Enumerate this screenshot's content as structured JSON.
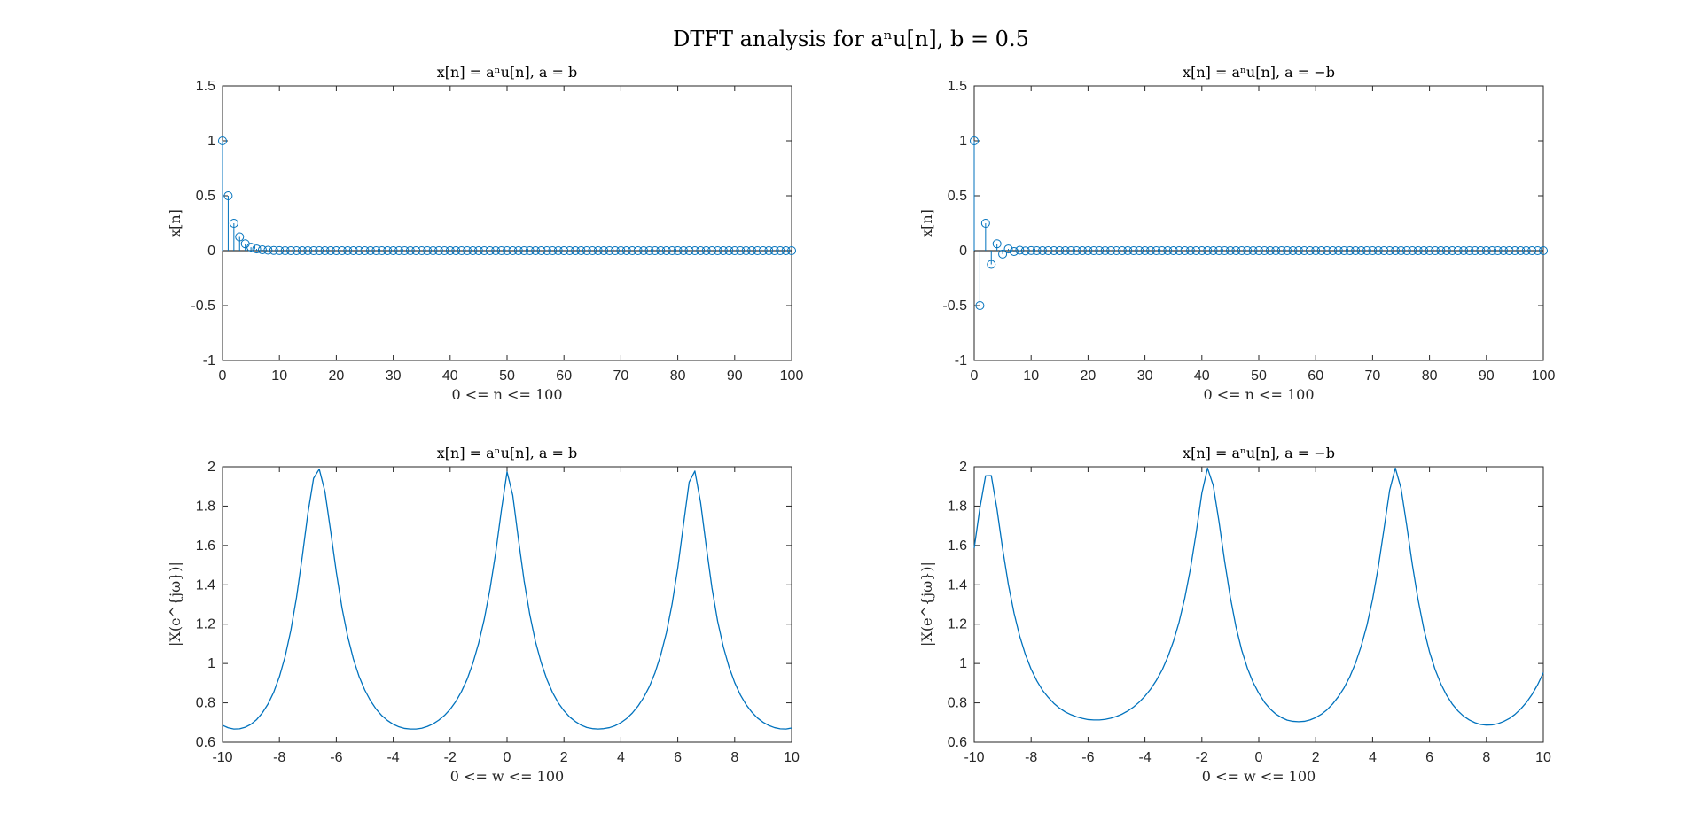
{
  "figure": {
    "suptitle": "DTFT analysis for aⁿu[n], b = 0.5"
  },
  "colors": {
    "series": "#0072BD",
    "axis": "#262626"
  },
  "chart_data": [
    {
      "id": "p1",
      "type": "stem",
      "title": "x[n] = aⁿu[n], a = b",
      "xlabel": "0 <= n <= 100",
      "ylabel": "x[n]",
      "xlim": [
        0,
        100
      ],
      "ylim": [
        -1,
        1.5
      ],
      "xticks": [
        "0",
        "10",
        "20",
        "30",
        "40",
        "50",
        "60",
        "70",
        "80",
        "90",
        "100"
      ],
      "yticks": [
        "-1",
        "-0.5",
        "0",
        "0.5",
        "1",
        "1.5"
      ],
      "x": [
        0,
        1,
        2,
        3,
        4,
        5,
        6,
        7,
        8,
        9,
        10,
        11,
        12,
        13,
        14,
        15,
        16,
        17,
        18,
        19,
        20,
        21,
        22,
        23,
        24,
        25,
        26,
        27,
        28,
        29,
        30,
        31,
        32,
        33,
        34,
        35,
        36,
        37,
        38,
        39,
        40,
        41,
        42,
        43,
        44,
        45,
        46,
        47,
        48,
        49,
        50,
        51,
        52,
        53,
        54,
        55,
        56,
        57,
        58,
        59,
        60,
        61,
        62,
        63,
        64,
        65,
        66,
        67,
        68,
        69,
        70,
        71,
        72,
        73,
        74,
        75,
        76,
        77,
        78,
        79,
        80,
        81,
        82,
        83,
        84,
        85,
        86,
        87,
        88,
        89,
        90,
        91,
        92,
        93,
        94,
        95,
        96,
        97,
        98,
        99,
        100
      ],
      "y": [
        1,
        0.5,
        0.25,
        0.125,
        0.0625,
        0.0313,
        0.0156,
        0.0078,
        0.0039,
        0.002,
        0.001,
        0,
        0,
        0,
        0,
        0,
        0,
        0,
        0,
        0,
        0,
        0,
        0,
        0,
        0,
        0,
        0,
        0,
        0,
        0,
        0,
        0,
        0,
        0,
        0,
        0,
        0,
        0,
        0,
        0,
        0,
        0,
        0,
        0,
        0,
        0,
        0,
        0,
        0,
        0,
        0,
        0,
        0,
        0,
        0,
        0,
        0,
        0,
        0,
        0,
        0,
        0,
        0,
        0,
        0,
        0,
        0,
        0,
        0,
        0,
        0,
        0,
        0,
        0,
        0,
        0,
        0,
        0,
        0,
        0,
        0,
        0,
        0,
        0,
        0,
        0,
        0,
        0,
        0,
        0,
        0,
        0,
        0,
        0,
        0,
        0,
        0,
        0,
        0,
        0,
        0
      ]
    },
    {
      "id": "p2",
      "type": "stem",
      "title": "x[n] = aⁿu[n], a = −b",
      "xlabel": "0 <= n <= 100",
      "ylabel": "x[n]",
      "xlim": [
        0,
        100
      ],
      "ylim": [
        -1,
        1.5
      ],
      "xticks": [
        "0",
        "10",
        "20",
        "30",
        "40",
        "50",
        "60",
        "70",
        "80",
        "90",
        "100"
      ],
      "yticks": [
        "-1",
        "-0.5",
        "0",
        "0.5",
        "1",
        "1.5"
      ],
      "x": [
        0,
        1,
        2,
        3,
        4,
        5,
        6,
        7,
        8,
        9,
        10,
        11,
        12,
        13,
        14,
        15,
        16,
        17,
        18,
        19,
        20,
        21,
        22,
        23,
        24,
        25,
        26,
        27,
        28,
        29,
        30,
        31,
        32,
        33,
        34,
        35,
        36,
        37,
        38,
        39,
        40,
        41,
        42,
        43,
        44,
        45,
        46,
        47,
        48,
        49,
        50,
        51,
        52,
        53,
        54,
        55,
        56,
        57,
        58,
        59,
        60,
        61,
        62,
        63,
        64,
        65,
        66,
        67,
        68,
        69,
        70,
        71,
        72,
        73,
        74,
        75,
        76,
        77,
        78,
        79,
        80,
        81,
        82,
        83,
        84,
        85,
        86,
        87,
        88,
        89,
        90,
        91,
        92,
        93,
        94,
        95,
        96,
        97,
        98,
        99,
        100
      ],
      "y": [
        1,
        -0.5,
        0.25,
        -0.125,
        0.0625,
        -0.0313,
        0.0156,
        -0.0078,
        0.0039,
        -0.002,
        0.001,
        0,
        0,
        0,
        0,
        0,
        0,
        0,
        0,
        0,
        0,
        0,
        0,
        0,
        0,
        0,
        0,
        0,
        0,
        0,
        0,
        0,
        0,
        0,
        0,
        0,
        0,
        0,
        0,
        0,
        0,
        0,
        0,
        0,
        0,
        0,
        0,
        0,
        0,
        0,
        0,
        0,
        0,
        0,
        0,
        0,
        0,
        0,
        0,
        0,
        0,
        0,
        0,
        0,
        0,
        0,
        0,
        0,
        0,
        0,
        0,
        0,
        0,
        0,
        0,
        0,
        0,
        0,
        0,
        0,
        0,
        0,
        0,
        0,
        0,
        0,
        0,
        0,
        0,
        0,
        0,
        0,
        0,
        0,
        0,
        0,
        0,
        0,
        0,
        0,
        0
      ]
    },
    {
      "id": "p3",
      "type": "line",
      "title": "x[n] = aⁿu[n], a = b",
      "xlabel": "0 <= w <= 100",
      "ylabel": "|X(e^{jω})|",
      "xlim": [
        -10,
        10
      ],
      "ylim": [
        0.6,
        2
      ],
      "xticks": [
        "-10",
        "-8",
        "-6",
        "-4",
        "-2",
        "0",
        "2",
        "4",
        "6",
        "8",
        "10"
      ],
      "yticks": [
        "0.6",
        "0.8",
        "1",
        "1.2",
        "1.4",
        "1.6",
        "1.8",
        "2"
      ],
      "x": [
        -10,
        -9.8,
        -9.6,
        -9.4,
        -9.2,
        -9,
        -8.8,
        -8.6,
        -8.4,
        -8.2,
        -8,
        -7.8,
        -7.6,
        -7.4,
        -7.2,
        -7,
        -6.8,
        -6.6,
        -6.4,
        -6.2,
        -6,
        -5.8,
        -5.6,
        -5.4,
        -5.2,
        -5,
        -4.8,
        -4.6,
        -4.4,
        -4.2,
        -4,
        -3.8,
        -3.6,
        -3.4,
        -3.2,
        -3,
        -2.8,
        -2.6,
        -2.4,
        -2.2,
        -2,
        -1.8,
        -1.6,
        -1.4,
        -1.2,
        -1,
        -0.8,
        -0.6,
        -0.4,
        -0.2,
        0,
        0.2,
        0.4,
        0.6,
        0.8,
        1,
        1.2,
        1.4,
        1.6,
        1.8,
        2,
        2.2,
        2.4,
        2.6,
        2.8,
        3,
        3.2,
        3.4,
        3.6,
        3.8,
        4,
        4.2,
        4.4,
        4.6,
        4.8,
        5,
        5.2,
        5.4,
        5.6,
        5.8,
        6,
        6.2,
        6.4,
        6.6,
        6.8,
        7,
        7.2,
        7.4,
        7.6,
        7.8,
        8,
        8.2,
        8.4,
        8.6,
        8.8,
        9,
        9.2,
        9.4,
        9.6,
        9.8,
        10
      ],
      "y": [
        0.686,
        0.673,
        0.667,
        0.668,
        0.676,
        0.691,
        0.715,
        0.749,
        0.794,
        0.854,
        0.933,
        1.035,
        1.167,
        1.335,
        1.54,
        1.762,
        1.941,
        1.988,
        1.874,
        1.673,
        1.464,
        1.282,
        1.137,
        1.023,
        0.934,
        0.865,
        0.811,
        0.768,
        0.735,
        0.71,
        0.691,
        0.678,
        0.67,
        0.667,
        0.667,
        0.671,
        0.68,
        0.693,
        0.712,
        0.736,
        0.767,
        0.807,
        0.858,
        0.921,
        1.002,
        1.102,
        1.226,
        1.378,
        1.562,
        1.778,
        1.974,
        1.855,
        1.631,
        1.42,
        1.248,
        1.11,
        1.004,
        0.919,
        0.852,
        0.8,
        0.76,
        0.728,
        0.705,
        0.687,
        0.675,
        0.669,
        0.667,
        0.669,
        0.674,
        0.684,
        0.699,
        0.72,
        0.748,
        0.783,
        0.827,
        0.882,
        0.953,
        1.043,
        1.156,
        1.302,
        1.486,
        1.706,
        1.922,
        1.978,
        1.82,
        1.596,
        1.385,
        1.215,
        1.085,
        0.983,
        0.903,
        0.84,
        0.791,
        0.753,
        0.723,
        0.701,
        0.685,
        0.674,
        0.668,
        0.667,
        0.672
      ]
    },
    {
      "id": "p4",
      "type": "line",
      "title": "x[n] = aⁿu[n], a = −b",
      "xlabel": "0 <= w <= 100",
      "ylabel": "|X(e^{jω})|",
      "xlim": [
        -10,
        10
      ],
      "ylim": [
        0.6,
        2
      ],
      "xticks": [
        "-10",
        "-8",
        "-6",
        "-4",
        "-2",
        "0",
        "2",
        "4",
        "6",
        "8",
        "10"
      ],
      "yticks": [
        "0.6",
        "0.8",
        "1",
        "1.2",
        "1.4",
        "1.6",
        "1.8",
        "2"
      ],
      "x": [
        -10,
        -9.8,
        -9.6,
        -9.4,
        -9.2,
        -9,
        -8.8,
        -8.6,
        -8.4,
        -8.2,
        -8,
        -7.8,
        -7.6,
        -7.4,
        -7.2,
        -7,
        -6.8,
        -6.6,
        -6.4,
        -6.2,
        -6,
        -5.8,
        -5.6,
        -5.4,
        -5.2,
        -5,
        -4.8,
        -4.6,
        -4.4,
        -4.2,
        -4,
        -3.8,
        -3.6,
        -3.4,
        -3.2,
        -3,
        -2.8,
        -2.6,
        -2.4,
        -2.2,
        -2,
        -1.8,
        -1.6,
        -1.4,
        -1.2,
        -1,
        -0.8,
        -0.6,
        -0.4,
        -0.2,
        0,
        0.2,
        0.4,
        0.6,
        0.8,
        1,
        1.2,
        1.4,
        1.6,
        1.8,
        2,
        2.2,
        2.4,
        2.6,
        2.8,
        3,
        3.2,
        3.4,
        3.6,
        3.8,
        4,
        4.2,
        4.4,
        4.6,
        4.8,
        5,
        5.2,
        5.4,
        5.6,
        5.8,
        6,
        6.2,
        6.4,
        6.6,
        6.8,
        7,
        7.2,
        7.4,
        7.6,
        7.8,
        8,
        8.2,
        8.4,
        8.6,
        8.8,
        9,
        9.2,
        9.4,
        9.6,
        9.8,
        10
      ],
      "y": [
        1.587,
        1.79,
        1.954,
        1.955,
        1.785,
        1.582,
        1.402,
        1.256,
        1.138,
        1.045,
        0.971,
        0.912,
        0.864,
        0.828,
        0.797,
        0.773,
        0.754,
        0.74,
        0.729,
        0.721,
        0.715,
        0.713,
        0.713,
        0.716,
        0.722,
        0.731,
        0.743,
        0.759,
        0.779,
        0.804,
        0.834,
        0.87,
        0.914,
        0.966,
        1.032,
        1.112,
        1.211,
        1.333,
        1.483,
        1.665,
        1.866,
        1.993,
        1.905,
        1.723,
        1.52,
        1.337,
        1.186,
        1.068,
        0.976,
        0.904,
        0.849,
        0.803,
        0.769,
        0.743,
        0.725,
        0.712,
        0.706,
        0.704,
        0.706,
        0.713,
        0.725,
        0.742,
        0.765,
        0.795,
        0.832,
        0.877,
        0.933,
        1.002,
        1.088,
        1.194,
        1.326,
        1.49,
        1.683,
        1.881,
        1.993,
        1.89,
        1.701,
        1.5,
        1.323,
        1.176,
        1.059,
        0.968,
        0.896,
        0.839,
        0.794,
        0.759,
        0.732,
        0.713,
        0.699,
        0.69,
        0.687,
        0.688,
        0.694,
        0.705,
        0.72,
        0.741,
        0.768,
        0.801,
        0.842,
        0.892,
        0.953
      ]
    }
  ]
}
